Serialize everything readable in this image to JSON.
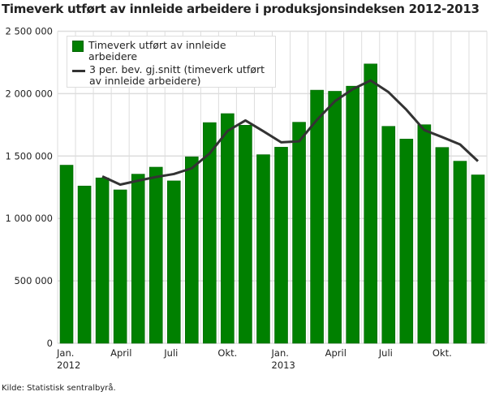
{
  "title": "Timeverk utført av innleide arbeidere i produksjonsindeksen 2012-2013",
  "source": "Kilde: Statistisk sentralbyrå.",
  "colors": {
    "bar": "#008000",
    "bar_border": "#006400",
    "line": "#333333",
    "grid": "#dddddd"
  },
  "chart_data": {
    "type": "bar",
    "title": "Timeverk utført av innleide arbeidere i produksjonsindeksen 2012-2013",
    "xlabel": "",
    "ylabel": "",
    "ylim": [
      0,
      2500000
    ],
    "grid": true,
    "legend_position": "top-left",
    "categories": [
      "2012-01",
      "2012-02",
      "2012-03",
      "2012-04",
      "2012-05",
      "2012-06",
      "2012-07",
      "2012-08",
      "2012-09",
      "2012-10",
      "2012-11",
      "2012-12",
      "2013-01",
      "2013-02",
      "2013-03",
      "2013-04",
      "2013-05",
      "2013-06",
      "2013-07",
      "2013-08",
      "2013-09",
      "2013-10",
      "2013-11",
      "2013-12"
    ],
    "x_tick_labels": [
      {
        "index": 0,
        "label": "Jan.",
        "sub": "2012"
      },
      {
        "index": 3,
        "label": "April",
        "sub": ""
      },
      {
        "index": 6,
        "label": "Juli",
        "sub": ""
      },
      {
        "index": 9,
        "label": "Okt.",
        "sub": ""
      },
      {
        "index": 12,
        "label": "Jan.",
        "sub": "2013"
      },
      {
        "index": 15,
        "label": "April",
        "sub": ""
      },
      {
        "index": 18,
        "label": "Juli",
        "sub": ""
      },
      {
        "index": 21,
        "label": "Okt.",
        "sub": ""
      }
    ],
    "y_tick_labels": [
      {
        "value": 0,
        "label": "0"
      },
      {
        "value": 500000,
        "label": "500 000"
      },
      {
        "value": 1000000,
        "label": "1 000 000"
      },
      {
        "value": 1500000,
        "label": "1 500 000"
      },
      {
        "value": 2000000,
        "label": "2 000 000"
      },
      {
        "value": 2500000,
        "label": "2 500 000"
      }
    ],
    "series": [
      {
        "name": "Timeverk utført av innleide arbeidere",
        "type": "bar",
        "values": [
          1427000,
          1260000,
          1325000,
          1229000,
          1355000,
          1411000,
          1301000,
          1494000,
          1768000,
          1840000,
          1747000,
          1511000,
          1571000,
          1771000,
          2028000,
          2019000,
          2060000,
          2238000,
          1738000,
          1636000,
          1751000,
          1569000,
          1459000,
          1349000
        ]
      },
      {
        "name": "3 per. bev. gj.snitt (timeverk utført av innleide arbeidere)",
        "type": "line",
        "values": [
          null,
          null,
          1337000,
          1271000,
          1303000,
          1332000,
          1356000,
          1402000,
          1521000,
          1701000,
          1785000,
          1699000,
          1610000,
          1618000,
          1790000,
          1939000,
          2036000,
          2106000,
          2012000,
          1871000,
          1708000,
          1652000,
          1593000,
          1459000
        ]
      }
    ]
  }
}
